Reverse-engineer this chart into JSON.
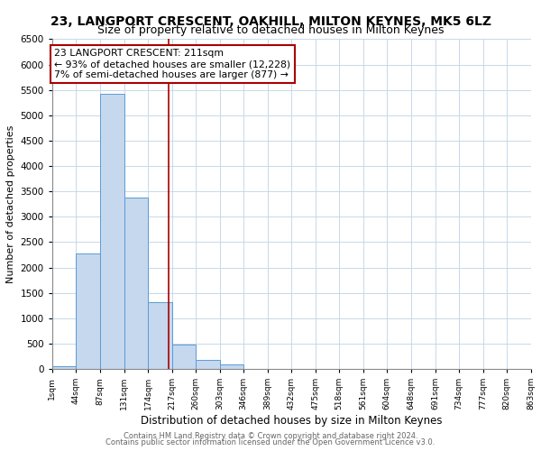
{
  "title": "23, LANGPORT CRESCENT, OAKHILL, MILTON KEYNES, MK5 6LZ",
  "subtitle": "Size of property relative to detached houses in Milton Keynes",
  "xlabel": "Distribution of detached houses by size in Milton Keynes",
  "ylabel": "Number of detached properties",
  "bin_edges": [
    1,
    44,
    87,
    131,
    174,
    217,
    260,
    303,
    346,
    389,
    432,
    475,
    518,
    561,
    604,
    648,
    691,
    734,
    777,
    820,
    863
  ],
  "bin_labels": [
    "1sqm",
    "44sqm",
    "87sqm",
    "131sqm",
    "174sqm",
    "217sqm",
    "260sqm",
    "303sqm",
    "346sqm",
    "389sqm",
    "432sqm",
    "475sqm",
    "518sqm",
    "561sqm",
    "604sqm",
    "648sqm",
    "691sqm",
    "734sqm",
    "777sqm",
    "820sqm",
    "863sqm"
  ],
  "counts": [
    50,
    2280,
    5430,
    3380,
    1310,
    490,
    185,
    95,
    0,
    0,
    0,
    0,
    0,
    0,
    0,
    0,
    0,
    0,
    0,
    0
  ],
  "bar_color": "#c5d8ee",
  "bar_edge_color": "#5b9bd5",
  "vline_x": 211,
  "vline_color": "#aa0000",
  "annotation_line1": "23 LANGPORT CRESCENT: 211sqm",
  "annotation_line2": "← 93% of detached houses are smaller (12,228)",
  "annotation_line3": "7% of semi-detached houses are larger (877) →",
  "annotation_box_color": "white",
  "annotation_box_edge_color": "#aa0000",
  "ylim": [
    0,
    6500
  ],
  "footer1": "Contains HM Land Registry data © Crown copyright and database right 2024.",
  "footer2": "Contains public sector information licensed under the Open Government Licence v3.0.",
  "background_color": "white",
  "plot_background_color": "white",
  "grid_color": "#c8d8e8",
  "title_fontsize": 10,
  "subtitle_fontsize": 9
}
